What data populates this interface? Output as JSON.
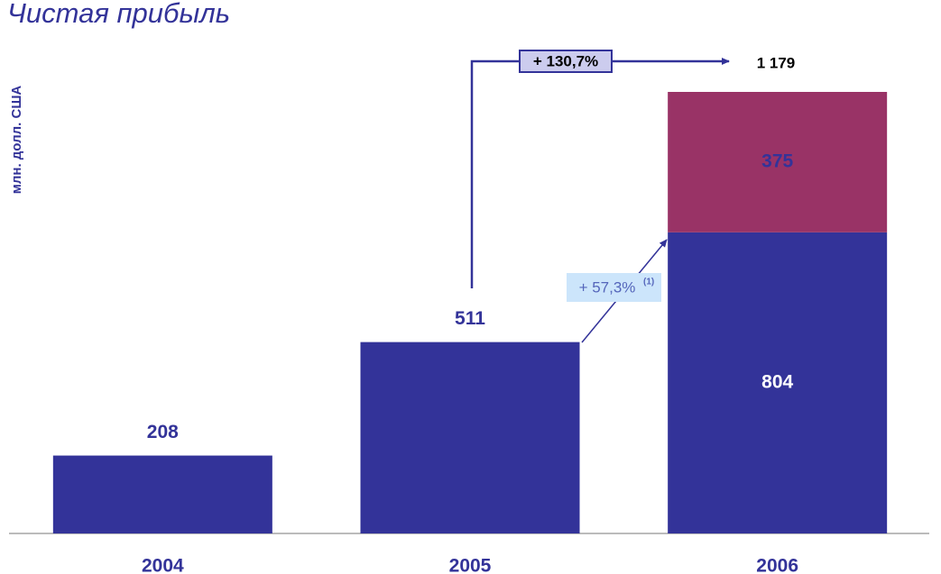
{
  "chart_data": {
    "type": "stacked_bar",
    "title": "Чистая прибыль",
    "y_label": "млн. долл. США",
    "categories": [
      "2004",
      "2005",
      "2006"
    ],
    "series": [
      {
        "color": "#333399",
        "label_color": "#333399",
        "values": [
          208,
          511,
          804
        ]
      },
      {
        "color": "#993366",
        "label_color": "#333399",
        "values": [
          null,
          null,
          375
        ]
      }
    ],
    "annotations": {
      "total_growth": "+ 130,7%",
      "total_2006": "1 179",
      "growth_2006": "+ 57,3%",
      "footnote_ref": "(1)"
    }
  }
}
